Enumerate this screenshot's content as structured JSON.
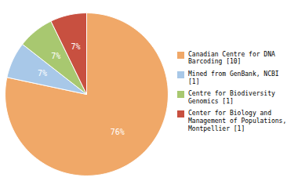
{
  "chart_data": {
    "type": "pie",
    "categories": [
      "Canadian Centre for DNA\nBarcoding [10]",
      "Mined from GenBank, NCBI [1]",
      "Centre for Biodiversity\nGenomics [1]",
      "Center for Biology and\nManagement of Populations,\nMontpellier [1]"
    ],
    "values": [
      76,
      7,
      7,
      7
    ],
    "value_labels": [
      "76%",
      "7%",
      "7%",
      "7%"
    ],
    "colors": [
      "#F0A868",
      "#A8C8E8",
      "#A8C870",
      "#C85040"
    ],
    "data_labels": true,
    "legend": "right"
  }
}
